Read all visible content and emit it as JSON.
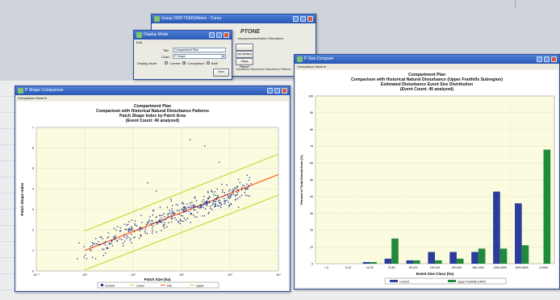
{
  "back_window": {
    "title": "Grasp 2009 TEMS/Metric - Cores",
    "logo_text": "PTONE",
    "line_text": "...ndaryprocessnt/altern Stimulation",
    "buttons": [
      "",
      "Ind Motion",
      "Gaps Report"
    ],
    "footer": "Operations Disturbance Disturbance Patterns"
  },
  "dialog": {
    "title": "Display Mode",
    "menu": "Edit",
    "title_label": "Title",
    "title_value": "Compartment Plan",
    "chart_label": "Chart",
    "chart_value": "P Shape",
    "display_label": "Display Mode",
    "radio_options": [
      "Current",
      "Comparison",
      "Both"
    ],
    "selected_radio": 1,
    "view_button": "View"
  },
  "scatter_window": {
    "title": "P Shape Comparison",
    "menu": "Comparison Mode ▾",
    "chart_data": {
      "type": "scatter",
      "title": "Compartment Plan",
      "subtitle_lines": [
        "Comparison with Historical Natural Disturbance Patterns",
        "Patch Shape Index by Patch Area",
        "(Event Count: 40 analyzed)"
      ],
      "xlabel": "Patch Size (ha)",
      "ylabel": "Patch Shape Index",
      "x_scale": "log",
      "x_ticks": [
        "10⁻¹",
        "10⁰",
        "10¹",
        "10²",
        "10³",
        "10⁴"
      ],
      "x_tick_values": [
        0.1,
        1,
        10,
        100,
        1000,
        10000
      ],
      "y_ticks": [
        "0",
        "1",
        "2",
        "3",
        "4",
        "5",
        "6",
        "7"
      ],
      "y_range": [
        0,
        7
      ],
      "legend": [
        {
          "name": "Current",
          "color": "#1b2a8f"
        },
        {
          "name": "Lower",
          "color": "#c8dc3c"
        },
        {
          "name": "Fits",
          "color": "#ff5a20"
        },
        {
          "name": "Upper",
          "color": "#c8dc3c"
        }
      ],
      "fit_line": {
        "x": [
          1,
          10000
        ],
        "y": [
          1.0,
          4.7
        ]
      },
      "lower_line": {
        "x": [
          1,
          10000
        ],
        "y": [
          0.05,
          3.7
        ]
      },
      "upper_line": {
        "x": [
          1,
          10000
        ],
        "y": [
          1.95,
          5.7
        ]
      },
      "point_count": 420,
      "outliers": [
        [
          20,
          4.3
        ],
        [
          150,
          6.4
        ],
        [
          300,
          6.1
        ],
        [
          600,
          5.3
        ],
        [
          1500,
          3.1
        ],
        [
          30,
          3.9
        ],
        [
          60,
          3.5
        ]
      ]
    }
  },
  "bar_window": {
    "title": "P Size Compare",
    "menu": "Comparison Mode ▾",
    "chart_data": {
      "type": "bar",
      "title": "Compartment Plan",
      "subtitle_lines": [
        "Comparison with Historical Natural Disturbance (Upper Foothills Subregion)",
        "Estimated Disturbance Event Size Distribution",
        "(Event Count: 40 analyzed)"
      ],
      "xlabel": "Event Size Class (ha)",
      "ylabel": "Percent of Total Events/Area (%)",
      "ylim": [
        0,
        100
      ],
      "y_ticks": [
        "0",
        "10",
        "20",
        "30",
        "40",
        "50",
        "60",
        "70",
        "80",
        "90",
        "100"
      ],
      "categories": [
        "< 5",
        "5-10",
        "10-20",
        "20-50",
        "50-100",
        "100-200",
        "200-500",
        "500-1000",
        "1000-2000",
        "2000-5000",
        ">10000"
      ],
      "series": [
        {
          "name": "Current",
          "color": "#2b3c9a",
          "values": [
            0,
            0,
            1,
            3,
            2,
            7,
            7,
            7,
            43,
            36,
            0
          ]
        },
        {
          "name": "Upper Foothills (HRV)",
          "color": "#1f8a3a",
          "values": [
            0,
            0,
            1,
            15,
            2,
            2,
            3,
            9,
            9,
            11,
            68
          ]
        }
      ]
    }
  },
  "colors": {
    "titlebar": "#2a57b4",
    "plot_bg": "#fbfbe0",
    "fit_line": "#ff5a20",
    "band_line": "#c8dc3c"
  }
}
